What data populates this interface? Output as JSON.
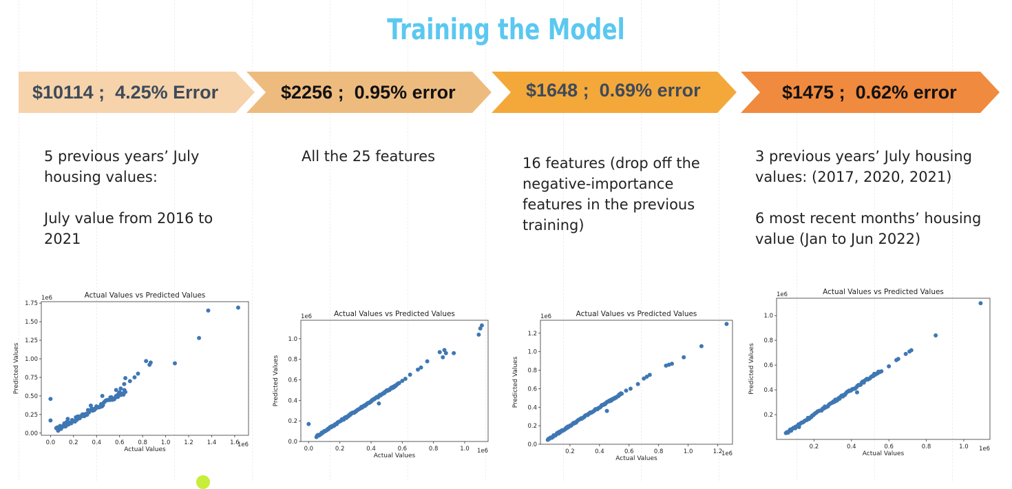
{
  "title": "Training the Model",
  "colors": {
    "title": "#5bc8f0",
    "chevrons": [
      "#f6d3ab",
      "#eebb7f",
      "#f4a83a",
      "#f08a3e"
    ],
    "point": "#3f77b3"
  },
  "steps": [
    {
      "label": "$10114 ;  4.25% Error",
      "text_color": "#3e4a59",
      "description": [
        "5 previous years’ July housing values:",
        "July value from 2016 to 2021"
      ]
    },
    {
      "label": "$2256 ;  0.95% error",
      "text_color": "#111111",
      "description": [
        "All the 25 features"
      ]
    },
    {
      "label": "$1648 ;  0.69% error",
      "text_color": "#3e4a59",
      "description": [
        "16 features (drop off the negative-importance features in the previous training)"
      ]
    },
    {
      "label": "$1475 ;  0.62% error",
      "text_color": "#111111",
      "description": [
        "3 previous years’ July housing values: (2017, 2020, 2021)",
        "6 most recent months’ housing value (Jan to Jun 2022)"
      ]
    }
  ],
  "chart_data": [
    {
      "type": "scatter",
      "title": "Actual Values vs Predicted Values",
      "xlabel": "Actual Values",
      "ylabel": "Predicted Values",
      "x_offset_label": "1e6",
      "y_offset_label": "1e6",
      "xlim": [
        -0.08,
        1.72
      ],
      "ylim": [
        -0.03,
        1.77
      ],
      "xticks": [
        0.0,
        0.2,
        0.4,
        0.6,
        0.8,
        1.0,
        1.2,
        1.4,
        1.6
      ],
      "xtick_labels": [
        "0.0",
        "0.2",
        "0.4",
        "0.6",
        "0.8",
        "1.0",
        "1.2",
        "1.4",
        "1.6"
      ],
      "yticks": [
        0.0,
        0.25,
        0.5,
        0.75,
        1.0,
        1.25,
        1.5,
        1.75
      ],
      "ytick_labels": [
        "0.00",
        "0.25",
        "0.50",
        "0.75",
        "1.00",
        "1.25",
        "1.50",
        "1.75"
      ],
      "trend": {
        "x_start": 0.05,
        "x_end": 0.65,
        "n": 75,
        "slope": 0.86,
        "intercept": 0.0,
        "jitter": 0.03
      },
      "points": [
        [
          0.0,
          0.46
        ],
        [
          0.0,
          0.17
        ],
        [
          0.15,
          0.19
        ],
        [
          0.12,
          0.13
        ],
        [
          0.35,
          0.37
        ],
        [
          0.38,
          0.31
        ],
        [
          0.45,
          0.5
        ],
        [
          0.52,
          0.48
        ],
        [
          0.57,
          0.58
        ],
        [
          0.6,
          0.55
        ],
        [
          0.61,
          0.6
        ],
        [
          0.64,
          0.66
        ],
        [
          0.65,
          0.74
        ],
        [
          0.69,
          0.7
        ],
        [
          0.73,
          0.75
        ],
        [
          0.76,
          0.8
        ],
        [
          0.83,
          0.97
        ],
        [
          0.86,
          0.92
        ],
        [
          0.87,
          0.95
        ],
        [
          1.08,
          0.94
        ],
        [
          1.29,
          1.28
        ],
        [
          1.37,
          1.65
        ],
        [
          1.63,
          1.69
        ]
      ]
    },
    {
      "type": "scatter",
      "title": "Actual Values vs Predicted Values",
      "xlabel": "Actual Values",
      "ylabel": "Predicted Values",
      "x_offset_label": "1e6",
      "y_offset_label": "1e6",
      "xlim": [
        -0.05,
        1.15
      ],
      "ylim": [
        0.0,
        1.18
      ],
      "xticks": [
        0.0,
        0.2,
        0.4,
        0.6,
        0.8,
        1.0
      ],
      "xtick_labels": [
        "0.0",
        "0.2",
        "0.4",
        "0.6",
        "0.8",
        "1.0"
      ],
      "yticks": [
        0.0,
        0.2,
        0.4,
        0.6,
        0.8,
        1.0
      ],
      "ytick_labels": [
        "0.0",
        "0.2",
        "0.4",
        "0.6",
        "0.8",
        "1.0"
      ],
      "trend": {
        "x_start": 0.05,
        "x_end": 0.58,
        "n": 95,
        "slope": 0.98,
        "intercept": 0.0,
        "jitter": 0.008
      },
      "points": [
        [
          0.0,
          0.17
        ],
        [
          0.45,
          0.37
        ],
        [
          0.6,
          0.59
        ],
        [
          0.62,
          0.61
        ],
        [
          0.65,
          0.65
        ],
        [
          0.7,
          0.7
        ],
        [
          0.72,
          0.72
        ],
        [
          0.76,
          0.78
        ],
        [
          0.84,
          0.87
        ],
        [
          0.86,
          0.82
        ],
        [
          0.87,
          0.89
        ],
        [
          0.88,
          0.86
        ],
        [
          0.93,
          0.86
        ],
        [
          1.09,
          1.04
        ],
        [
          1.1,
          1.1
        ],
        [
          1.11,
          1.13
        ]
      ]
    },
    {
      "type": "scatter",
      "title": "Actual Values vs Predicted Values",
      "xlabel": "Actual Values",
      "ylabel": "Predicted Values",
      "x_offset_label": "1e6",
      "y_offset_label": "1e6",
      "xlim": [
        0.0,
        1.3
      ],
      "ylim": [
        0.0,
        1.34
      ],
      "xticks": [
        0.2,
        0.4,
        0.6,
        0.8,
        1.0,
        1.2
      ],
      "xtick_labels": [
        "0.2",
        "0.4",
        "0.6",
        "0.8",
        "1.0",
        "1.2"
      ],
      "yticks": [
        0.0,
        0.2,
        0.4,
        0.6,
        0.8,
        1.0,
        1.2
      ],
      "ytick_labels": [
        "0.0",
        "0.2",
        "0.4",
        "0.6",
        "0.8",
        "1.0",
        "1.2"
      ],
      "trend": {
        "x_start": 0.05,
        "x_end": 0.55,
        "n": 90,
        "slope": 1.0,
        "intercept": 0.0,
        "jitter": 0.008
      },
      "points": [
        [
          0.45,
          0.36
        ],
        [
          0.58,
          0.58
        ],
        [
          0.61,
          0.6
        ],
        [
          0.66,
          0.65
        ],
        [
          0.7,
          0.71
        ],
        [
          0.72,
          0.73
        ],
        [
          0.74,
          0.75
        ],
        [
          0.85,
          0.85
        ],
        [
          0.87,
          0.86
        ],
        [
          0.89,
          0.87
        ],
        [
          0.97,
          0.94
        ],
        [
          1.09,
          1.06
        ],
        [
          1.26,
          1.3
        ]
      ]
    },
    {
      "type": "scatter",
      "title": "Actual Values vs Predicted Values",
      "xlabel": "Actual Values",
      "ylabel": "Predicted Values",
      "x_offset_label": "1e6",
      "y_offset_label": "1e6",
      "xlim": [
        0.0,
        1.14
      ],
      "ylim": [
        0.0,
        1.14
      ],
      "xticks": [
        0.2,
        0.4,
        0.6,
        0.8,
        1.0
      ],
      "xtick_labels": [
        "0.2",
        "0.4",
        "0.6",
        "0.8",
        "1.0"
      ],
      "yticks": [
        0.2,
        0.4,
        0.6,
        0.8,
        1.0
      ],
      "ytick_labels": [
        "0.2",
        "0.4",
        "0.6",
        "0.8",
        "1.0"
      ],
      "trend": {
        "x_start": 0.05,
        "x_end": 0.55,
        "n": 90,
        "slope": 1.0,
        "intercept": 0.0,
        "jitter": 0.008
      },
      "points": [
        [
          0.1,
          0.09
        ],
        [
          0.12,
          0.1
        ],
        [
          0.43,
          0.38
        ],
        [
          0.56,
          0.55
        ],
        [
          0.6,
          0.59
        ],
        [
          0.64,
          0.64
        ],
        [
          0.65,
          0.65
        ],
        [
          0.69,
          0.69
        ],
        [
          0.71,
          0.71
        ],
        [
          0.72,
          0.72
        ],
        [
          0.85,
          0.84
        ],
        [
          1.09,
          1.1
        ]
      ]
    }
  ]
}
